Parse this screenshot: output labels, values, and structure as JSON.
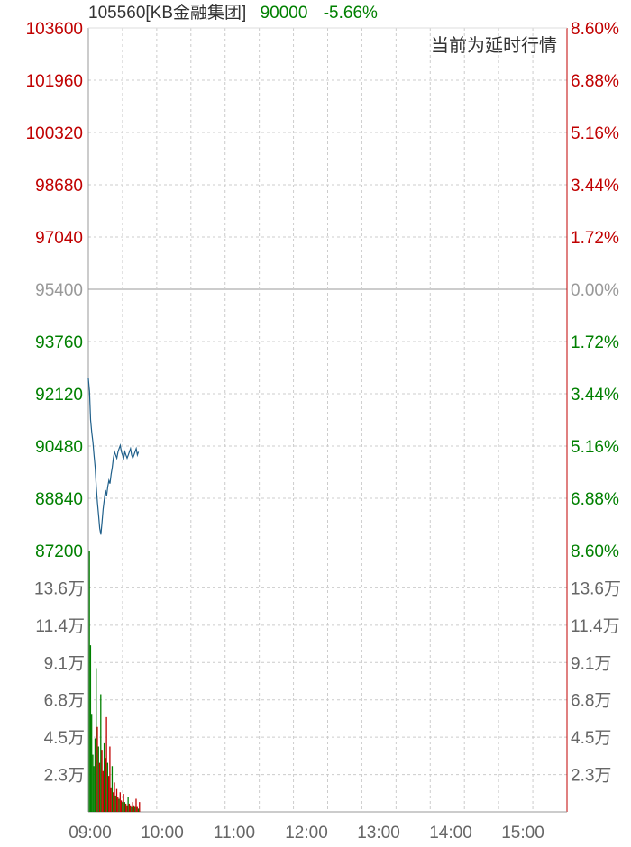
{
  "header": {
    "symbol": "105560[KB金融集团]",
    "price": "90000",
    "change_pct": "-5.66%"
  },
  "note": "当前为延时行情",
  "colors": {
    "up": "#c00000",
    "down": "#008000",
    "neutral": "#999999",
    "price_line": "#1f5f8a",
    "grid": "#cccccc"
  },
  "chart_data": [
    {
      "type": "line",
      "title": "",
      "xlabel": "",
      "ylabel": "",
      "x_ticks": [
        "09:00",
        "10:00",
        "11:00",
        "12:00",
        "13:00",
        "14:00",
        "15:00"
      ],
      "y_ticks_left": [
        "103600",
        "101960",
        "100320",
        "98680",
        "97040",
        "95400",
        "93760",
        "92120",
        "90480",
        "88840",
        "87200"
      ],
      "y_ticks_right": [
        "8.60%",
        "6.88%",
        "5.16%",
        "3.44%",
        "1.72%",
        "0.00%",
        "1.72%",
        "3.44%",
        "5.16%",
        "6.88%",
        "8.60%"
      ],
      "ylim": [
        87200,
        103600
      ],
      "reference_price": 95400,
      "x_minutes_range": [
        0,
        420
      ],
      "series": [
        {
          "x": [
            0,
            1,
            2,
            3,
            4,
            5,
            6,
            7,
            8,
            9,
            10,
            11,
            12,
            13,
            14,
            15,
            16,
            17,
            18,
            19,
            20,
            21,
            22,
            23,
            24,
            25,
            26,
            27,
            28,
            29,
            30,
            31,
            32,
            33,
            34,
            35,
            36,
            37,
            38,
            39,
            40,
            41,
            42,
            43,
            44
          ],
          "values": [
            92600,
            92200,
            91300,
            90900,
            90600,
            90200,
            89800,
            89200,
            88700,
            88300,
            87900,
            87700,
            88100,
            88500,
            88800,
            89100,
            88900,
            89200,
            89400,
            89300,
            89600,
            89800,
            90100,
            90300,
            90200,
            90100,
            90300,
            90400,
            90500,
            90300,
            90200,
            90100,
            90300,
            90200,
            90100,
            90200,
            90300,
            90400,
            90200,
            90100,
            90200,
            90300,
            90400,
            90200,
            90300
          ]
        }
      ]
    },
    {
      "type": "bar",
      "title": "",
      "xlabel": "",
      "ylabel": "",
      "y_ticks_left": [
        "13.6万",
        "11.4万",
        "9.1万",
        "6.8万",
        "4.5万",
        "2.3万"
      ],
      "y_ticks_right": [
        "13.6万",
        "11.4万",
        "9.1万",
        "6.8万",
        "4.5万",
        "2.3万"
      ],
      "ylim": [
        0,
        160000
      ],
      "x_minutes_range": [
        0,
        420
      ],
      "series": [
        {
          "x": [
            0,
            1,
            2,
            3,
            4,
            5,
            6,
            7,
            8,
            9,
            10,
            11,
            12,
            13,
            14,
            15,
            16,
            17,
            18,
            19,
            20,
            21,
            22,
            23,
            24,
            25,
            26,
            27,
            28,
            29,
            30,
            31,
            32,
            33,
            34,
            35,
            36,
            37,
            38,
            39,
            40,
            41,
            42,
            43,
            44
          ],
          "values": [
            160000,
            102000,
            60000,
            35000,
            28000,
            45000,
            88000,
            52000,
            40000,
            30000,
            72000,
            38000,
            25000,
            42000,
            33000,
            58000,
            30000,
            22000,
            40000,
            15000,
            28000,
            12000,
            18000,
            10000,
            14000,
            9000,
            8000,
            12000,
            7000,
            6000,
            11000,
            6000,
            5000,
            4000,
            9000,
            5000,
            4000,
            3000,
            6000,
            4000,
            3000,
            8000,
            3000,
            2000,
            6000
          ],
          "direction": [
            "down",
            "down",
            "down",
            "down",
            "down",
            "down",
            "down",
            "up",
            "down",
            "up",
            "down",
            "up",
            "up",
            "down",
            "up",
            "up",
            "down",
            "up",
            "up",
            "up",
            "down",
            "up",
            "up",
            "down",
            "up",
            "up",
            "down",
            "up",
            "up",
            "down",
            "up",
            "down",
            "up",
            "up",
            "down",
            "up",
            "up",
            "down",
            "up",
            "up",
            "down",
            "up",
            "up",
            "down",
            "up"
          ]
        }
      ]
    }
  ]
}
